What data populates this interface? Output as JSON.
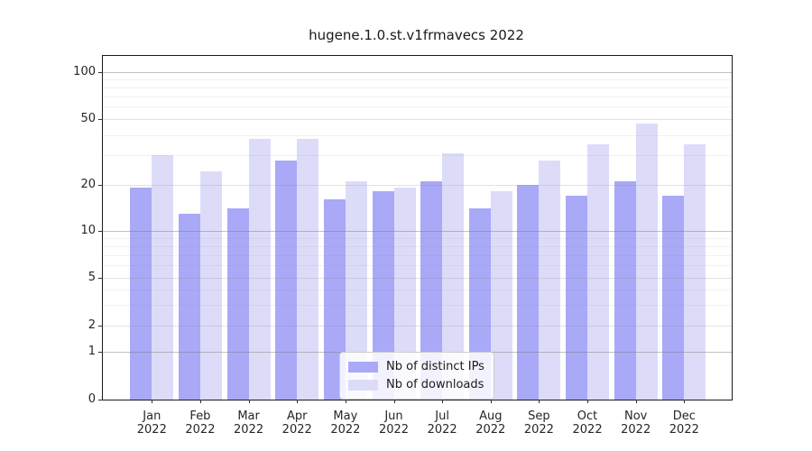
{
  "title": "hugene.1.0.st.v1frmavecs 2022",
  "chart_data": {
    "type": "bar",
    "title": "hugene.1.0.st.v1frmavecs 2022",
    "months": [
      "Jan",
      "Feb",
      "Mar",
      "Apr",
      "May",
      "Jun",
      "Jul",
      "Aug",
      "Sep",
      "Oct",
      "Nov",
      "Dec"
    ],
    "year": "2022",
    "series": [
      {
        "name": "Nb of distinct IPs",
        "color": "#a9a9f7",
        "values": [
          19,
          13,
          14,
          28,
          16,
          18,
          21,
          14,
          20,
          17,
          21,
          17
        ]
      },
      {
        "name": "Nb of downloads",
        "color": "#dcdcf9",
        "values": [
          30,
          24,
          38,
          38,
          21,
          19,
          31,
          18,
          28,
          35,
          47,
          35
        ]
      }
    ],
    "yscale": "log-like with 0 baseline",
    "ylim": [
      0,
      128
    ],
    "yticks": [
      100,
      50,
      20,
      10,
      5,
      2,
      1,
      0
    ],
    "grid": {
      "major": [
        1,
        10,
        100
      ],
      "minor_labeled": [
        2,
        5,
        20,
        50
      ],
      "minor": [
        3,
        4,
        6,
        7,
        8,
        9,
        30,
        40,
        60,
        70,
        80,
        90
      ]
    },
    "legend_position": "lower center",
    "xlabel": "",
    "ylabel": ""
  },
  "legend": {
    "items": [
      "Nb of distinct IPs",
      "Nb of downloads"
    ]
  }
}
